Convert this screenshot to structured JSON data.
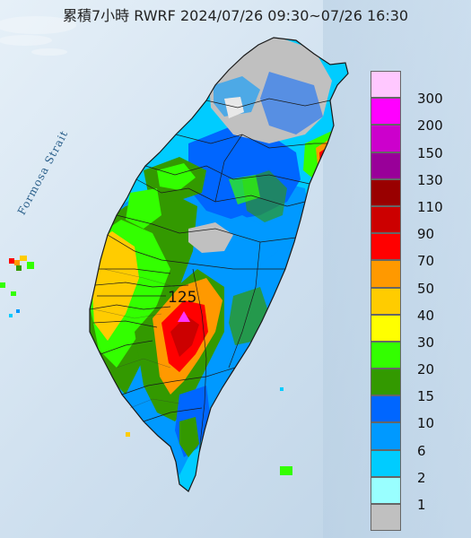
{
  "title": "累積7小時 RWRF 2024/07/26 09:30~07/26 16:30",
  "strait_label": "Formosa Strait",
  "max_marker": {
    "value": "125",
    "icon": "triangle-marker",
    "color": "#ff33ff"
  },
  "legend": [
    {
      "label": "300",
      "color": "#ffc8ff"
    },
    {
      "label": "200",
      "color": "#ff00ff"
    },
    {
      "label": "150",
      "color": "#cc00cc"
    },
    {
      "label": "130",
      "color": "#990099"
    },
    {
      "label": "110",
      "color": "#990000"
    },
    {
      "label": "90",
      "color": "#cc0000"
    },
    {
      "label": "70",
      "color": "#ff0000"
    },
    {
      "label": "50",
      "color": "#ff9900"
    },
    {
      "label": "40",
      "color": "#ffcc00"
    },
    {
      "label": "30",
      "color": "#ffff00"
    },
    {
      "label": "20",
      "color": "#33ff00"
    },
    {
      "label": "15",
      "color": "#339900"
    },
    {
      "label": "10",
      "color": "#0066ff"
    },
    {
      "label": "6",
      "color": "#0099ff"
    },
    {
      "label": "2",
      "color": "#00ccff"
    },
    {
      "label": "1",
      "color": "#99ffff"
    },
    {
      "label": "",
      "color": "#c0c0c0"
    }
  ],
  "colors": {
    "sea": "#d7e6f3",
    "border": "#1a1a1a"
  }
}
